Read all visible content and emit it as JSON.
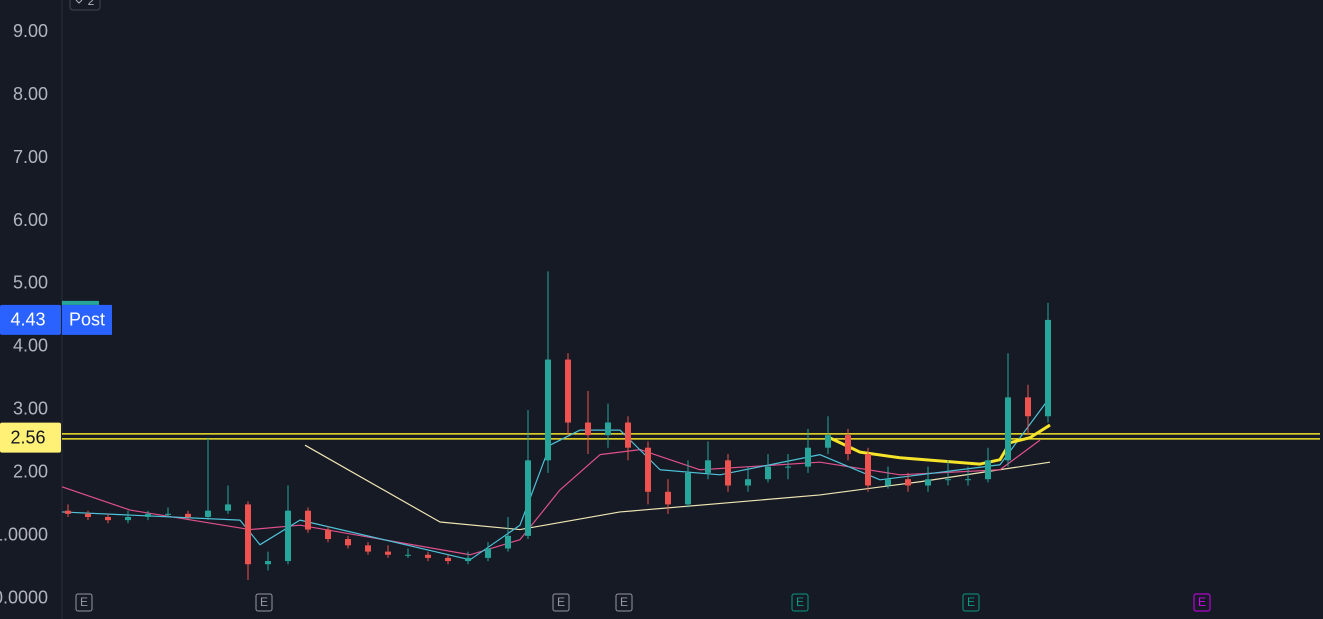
{
  "chart_data": {
    "type": "candlestick",
    "badge": "2",
    "x": [
      0,
      1,
      2,
      3,
      4,
      5,
      6,
      7,
      8,
      9,
      10,
      11,
      12,
      13,
      14,
      15,
      16,
      17,
      18,
      19,
      20,
      21,
      22,
      23,
      24,
      25,
      26,
      27,
      28,
      29,
      30,
      31,
      32,
      33,
      34,
      35,
      36,
      37,
      38,
      39,
      40,
      41,
      42,
      43,
      44,
      45,
      46,
      47,
      48,
      49
    ],
    "open": [
      1.4,
      1.35,
      1.3,
      1.25,
      1.3,
      1.35,
      1.35,
      1.3,
      1.4,
      1.5,
      0.55,
      0.6,
      1.4,
      1.1,
      0.95,
      0.85,
      0.75,
      0.7,
      0.7,
      0.65,
      0.6,
      0.65,
      0.8,
      1.0,
      2.2,
      3.8,
      2.8,
      2.6,
      2.8,
      2.4,
      1.7,
      1.5,
      2.0,
      2.2,
      1.8,
      1.9,
      2.1,
      2.1,
      2.4,
      2.6,
      2.3,
      1.8,
      1.9,
      1.8,
      1.9,
      1.9,
      1.9,
      2.2,
      3.2,
      2.9
    ],
    "high": [
      1.5,
      1.4,
      1.35,
      1.4,
      1.4,
      1.45,
      1.4,
      2.56,
      1.8,
      1.55,
      0.75,
      1.8,
      1.45,
      1.15,
      1.0,
      0.9,
      0.85,
      0.8,
      0.75,
      0.7,
      0.75,
      0.9,
      1.3,
      3.0,
      5.2,
      3.9,
      3.3,
      3.1,
      2.9,
      2.5,
      1.9,
      2.2,
      2.5,
      2.3,
      2.1,
      2.3,
      2.3,
      2.7,
      2.9,
      2.7,
      2.4,
      2.1,
      2.0,
      2.1,
      2.2,
      2.1,
      2.4,
      3.9,
      3.4,
      4.7
    ],
    "low": [
      1.3,
      1.25,
      1.2,
      1.2,
      1.25,
      1.3,
      1.25,
      1.25,
      1.35,
      0.3,
      0.45,
      0.55,
      1.05,
      0.9,
      0.8,
      0.7,
      0.65,
      0.65,
      0.6,
      0.55,
      0.55,
      0.6,
      0.75,
      0.95,
      2.0,
      2.6,
      2.3,
      2.4,
      2.2,
      1.5,
      1.35,
      1.45,
      1.9,
      1.7,
      1.7,
      1.85,
      1.9,
      2.0,
      2.3,
      2.2,
      1.7,
      1.75,
      1.7,
      1.7,
      1.8,
      1.8,
      1.85,
      2.1,
      2.6,
      2.8
    ],
    "close": [
      1.35,
      1.3,
      1.25,
      1.3,
      1.35,
      1.35,
      1.3,
      1.4,
      1.5,
      0.55,
      0.6,
      1.4,
      1.1,
      0.95,
      0.85,
      0.75,
      0.7,
      0.7,
      0.65,
      0.6,
      0.65,
      0.8,
      1.0,
      2.2,
      3.8,
      2.8,
      2.6,
      2.8,
      2.4,
      1.7,
      1.5,
      2.0,
      2.2,
      1.8,
      1.9,
      2.1,
      2.1,
      2.4,
      2.6,
      2.3,
      1.8,
      1.9,
      1.8,
      1.9,
      1.9,
      1.9,
      2.2,
      3.2,
      2.9,
      4.43
    ],
    "up_color": "#26a69a",
    "down_color": "#ef5350",
    "lines": [
      {
        "color": "#f0e6b4",
        "width": 1.2,
        "x": [
          11.85,
          18.6,
          22.6,
          27.6,
          37.6,
          42.6,
          49.1
        ],
        "values": [
          2.44,
          1.22,
          1.1,
          1.38,
          1.65,
          1.86,
          2.17
        ]
      },
      {
        "color": "#e0508c",
        "width": 1.2,
        "x": [
          -0.3,
          3.1,
          9.1,
          11.6,
          20.1,
          22.6,
          24.6,
          26.6,
          28.6,
          31.6,
          37.6,
          41.6,
          46.6,
          48.6
        ],
        "values": [
          1.78,
          1.41,
          1.1,
          1.17,
          0.7,
          0.94,
          1.73,
          2.29,
          2.37,
          2.05,
          2.17,
          1.97,
          2.05,
          2.52
        ]
      },
      {
        "color": "#4fc3d9",
        "width": 1.2,
        "x": [
          -0.3,
          8.6,
          9.6,
          11.6,
          20.1,
          22.6,
          24.1,
          25.6,
          27.6,
          29.6,
          32.6,
          37.6,
          40.6,
          46.6,
          49
        ],
        "values": [
          1.38,
          1.25,
          0.86,
          1.25,
          0.62,
          1.17,
          2.44,
          2.68,
          2.68,
          2.05,
          1.97,
          2.29,
          1.89,
          2.13,
          3.16
        ]
      },
      {
        "color": "#f5e42a",
        "width": 3,
        "x": [
          38,
          39.6,
          41.6,
          45.6,
          46.6,
          47.1,
          48.1,
          49.1
        ],
        "values": [
          2.57,
          2.33,
          2.24,
          2.14,
          2.21,
          2.48,
          2.56,
          2.76
        ]
      }
    ],
    "horizontal_lines": [
      2.62,
      2.54
    ],
    "horizontal_color": "#f5e42a",
    "price_labels": [
      {
        "value": 4.43,
        "label": "4.43",
        "tag": "Post",
        "color": "#2962ff"
      },
      {
        "value": 2.56,
        "label": "2.56",
        "color": "#fff176"
      }
    ],
    "events": [
      {
        "x": 0.8,
        "label": "E",
        "color": "#9598a1"
      },
      {
        "x": 9.8,
        "label": "E",
        "color": "#9598a1"
      },
      {
        "x": 24.65,
        "label": "E",
        "color": "#9598a1"
      },
      {
        "x": 27.8,
        "label": "E",
        "color": "#9598a1"
      },
      {
        "x": 36.6,
        "label": "E",
        "color": "#089981"
      },
      {
        "x": 45.15,
        "label": "E",
        "color": "#089981"
      },
      {
        "x": 56.7,
        "label": "E",
        "color": "#d500f9"
      }
    ],
    "xlim": [
      -0.3,
      62.6
    ],
    "ylim": [
      -0.32,
      9.51
    ],
    "yticks": [
      {
        "value": 9,
        "label": "9.00"
      },
      {
        "value": 8,
        "label": "8.00"
      },
      {
        "value": 7,
        "label": "7.00"
      },
      {
        "value": 6,
        "label": "6.00"
      },
      {
        "value": 5,
        "label": "5.00"
      },
      {
        "value": 4,
        "label": "4.00"
      },
      {
        "value": 3,
        "label": "3.00"
      },
      {
        "value": 2,
        "label": "2.00"
      },
      {
        "value": 1,
        "label": "1.0000"
      },
      {
        "value": 0,
        "label": "0.0000"
      }
    ]
  }
}
